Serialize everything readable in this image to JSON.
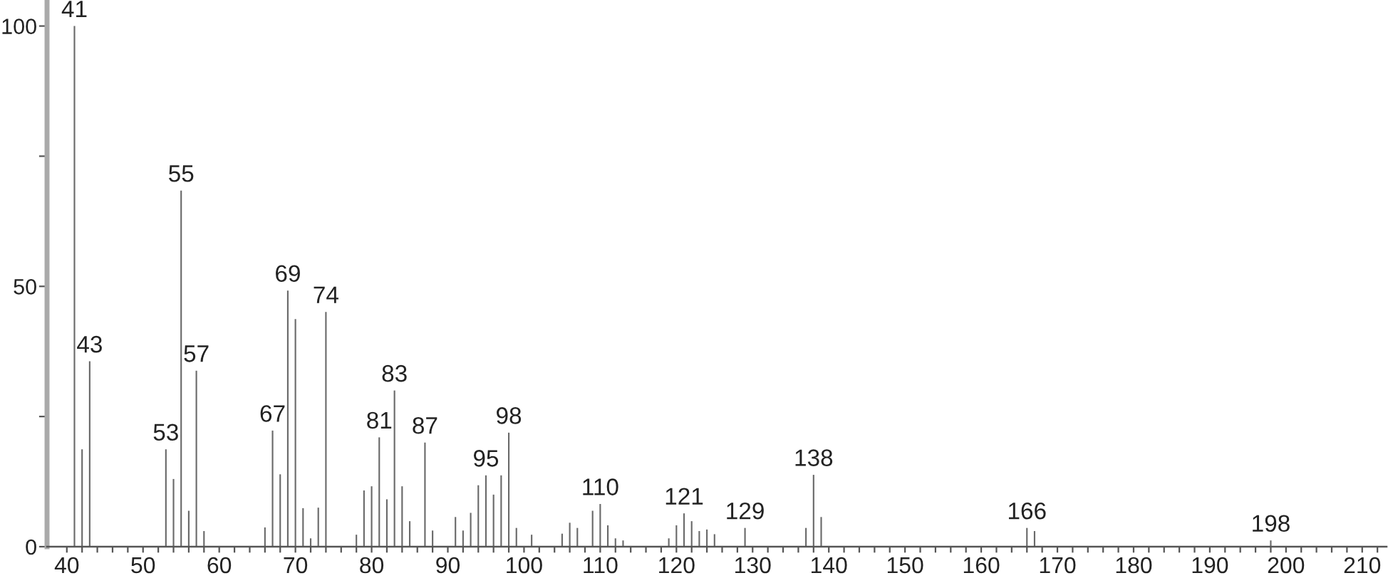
{
  "chart_data": {
    "type": "bar",
    "color": "#6a6a6a",
    "x": [
      41,
      42,
      43,
      53,
      54,
      55,
      56,
      57,
      58,
      66,
      67,
      68,
      69,
      70,
      71,
      72,
      73,
      74,
      78,
      79,
      80,
      81,
      82,
      83,
      84,
      85,
      87,
      88,
      91,
      92,
      93,
      94,
      95,
      96,
      97,
      98,
      99,
      101,
      105,
      106,
      107,
      109,
      110,
      111,
      112,
      113,
      119,
      120,
      121,
      122,
      123,
      124,
      125,
      129,
      137,
      138,
      139,
      166,
      167,
      198
    ],
    "values": [
      100,
      18.7,
      35.6,
      18.7,
      13.0,
      68.4,
      6.9,
      33.8,
      3.0,
      3.7,
      22.3,
      13.9,
      49.2,
      43.7,
      7.4,
      1.6,
      7.5,
      45.1,
      2.3,
      10.8,
      11.6,
      21.0,
      9.1,
      30.0,
      11.6,
      4.9,
      20.0,
      3.1,
      5.7,
      3.1,
      6.5,
      11.8,
      13.7,
      10.0,
      13.7,
      21.9,
      3.6,
      2.3,
      2.5,
      4.6,
      3.6,
      6.9,
      8.2,
      4.1,
      1.6,
      1.2,
      1.6,
      4.1,
      6.4,
      4.9,
      3.0,
      3.3,
      2.4,
      3.6,
      3.6,
      13.8,
      5.7,
      3.6,
      3.0,
      1.2
    ],
    "annotations": [
      {
        "text": "41",
        "x": 41,
        "y": 100
      },
      {
        "text": "43",
        "x": 43,
        "y": 35.6
      },
      {
        "text": "53",
        "x": 53,
        "y": 18.7
      },
      {
        "text": "55",
        "x": 55,
        "y": 68.4
      },
      {
        "text": "57",
        "x": 57,
        "y": 33.8
      },
      {
        "text": "67",
        "x": 67,
        "y": 22.3
      },
      {
        "text": "69",
        "x": 69,
        "y": 49.2
      },
      {
        "text": "74",
        "x": 74,
        "y": 45.1
      },
      {
        "text": "81",
        "x": 81,
        "y": 21.0
      },
      {
        "text": "83",
        "x": 83,
        "y": 30.0
      },
      {
        "text": "87",
        "x": 87,
        "y": 20.0
      },
      {
        "text": "95",
        "x": 95,
        "y": 13.7
      },
      {
        "text": "98",
        "x": 98,
        "y": 21.9
      },
      {
        "text": "110",
        "x": 110,
        "y": 8.2
      },
      {
        "text": "121",
        "x": 121,
        "y": 6.4
      },
      {
        "text": "129",
        "x": 129,
        "y": 3.6
      },
      {
        "text": "138",
        "x": 138,
        "y": 13.8
      },
      {
        "text": "166",
        "x": 166,
        "y": 3.6
      },
      {
        "text": "198",
        "x": 198,
        "y": 1.2
      }
    ],
    "xlim": [
      37.4,
      213.2
    ],
    "ylim": [
      0,
      105
    ],
    "xticks": [
      40,
      {
        "value": 42,
        "label": null
      },
      {
        "value": 44,
        "label": null
      },
      {
        "value": 46,
        "label": null
      },
      {
        "value": 48,
        "label": null
      },
      50,
      {
        "value": 52,
        "label": null
      },
      {
        "value": 54,
        "label": null
      },
      {
        "value": 56,
        "label": null
      },
      {
        "value": 58,
        "label": null
      },
      60,
      {
        "value": 62,
        "label": null
      },
      {
        "value": 64,
        "label": null
      },
      {
        "value": 66,
        "label": null
      },
      {
        "value": 68,
        "label": null
      },
      70,
      {
        "value": 72,
        "label": null
      },
      {
        "value": 74,
        "label": null
      },
      {
        "value": 76,
        "label": null
      },
      {
        "value": 78,
        "label": null
      },
      80,
      {
        "value": 82,
        "label": null
      },
      {
        "value": 84,
        "label": null
      },
      {
        "value": 86,
        "label": null
      },
      {
        "value": 88,
        "label": null
      },
      90,
      {
        "value": 92,
        "label": null
      },
      {
        "value": 94,
        "label": null
      },
      {
        "value": 96,
        "label": null
      },
      {
        "value": 98,
        "label": null
      },
      100,
      {
        "value": 102,
        "label": null
      },
      {
        "value": 104,
        "label": null
      },
      {
        "value": 106,
        "label": null
      },
      {
        "value": 108,
        "label": null
      },
      110,
      {
        "value": 112,
        "label": null
      },
      {
        "value": 114,
        "label": null
      },
      {
        "value": 116,
        "label": null
      },
      {
        "value": 118,
        "label": null
      },
      120,
      {
        "value": 122,
        "label": null
      },
      {
        "value": 124,
        "label": null
      },
      {
        "value": 126,
        "label": null
      },
      {
        "value": 128,
        "label": null
      },
      130,
      {
        "value": 132,
        "label": null
      },
      {
        "value": 134,
        "label": null
      },
      {
        "value": 136,
        "label": null
      },
      {
        "value": 138,
        "label": null
      },
      140,
      {
        "value": 142,
        "label": null
      },
      {
        "value": 144,
        "label": null
      },
      {
        "value": 146,
        "label": null
      },
      {
        "value": 148,
        "label": null
      },
      150,
      {
        "value": 152,
        "label": null
      },
      {
        "value": 154,
        "label": null
      },
      {
        "value": 156,
        "label": null
      },
      {
        "value": 158,
        "label": null
      },
      160,
      {
        "value": 162,
        "label": null
      },
      {
        "value": 164,
        "label": null
      },
      {
        "value": 166,
        "label": null
      },
      {
        "value": 168,
        "label": null
      },
      170,
      {
        "value": 172,
        "label": null
      },
      {
        "value": 174,
        "label": null
      },
      {
        "value": 176,
        "label": null
      },
      {
        "value": 178,
        "label": null
      },
      180,
      {
        "value": 182,
        "label": null
      },
      {
        "value": 184,
        "label": null
      },
      {
        "value": 186,
        "label": null
      },
      {
        "value": 188,
        "label": null
      },
      190,
      {
        "value": 192,
        "label": null
      },
      {
        "value": 194,
        "label": null
      },
      {
        "value": 196,
        "label": null
      },
      {
        "value": 198,
        "label": null
      },
      200,
      {
        "value": 202,
        "label": null
      },
      {
        "value": 204,
        "label": null
      },
      {
        "value": 206,
        "label": null
      },
      {
        "value": 208,
        "label": null
      },
      210,
      {
        "value": 212,
        "label": null
      }
    ],
    "yticks": [
      0,
      {
        "value": 25,
        "label": null
      },
      50,
      {
        "value": 75,
        "label": null
      },
      100
    ]
  }
}
